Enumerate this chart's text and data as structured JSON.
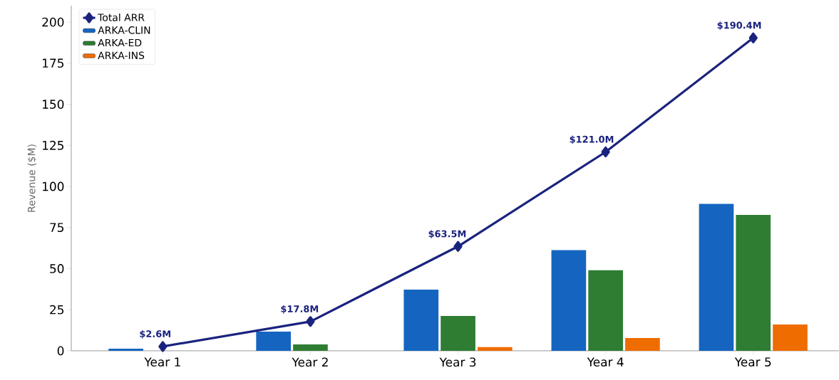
{
  "chart_data": {
    "type": "bar",
    "ylabel": "Revenue ($M)",
    "categories": [
      "Year 1",
      "Year 2",
      "Year 3",
      "Year 4",
      "Year 5"
    ],
    "series": [
      {
        "name": "Total ARR",
        "type": "line",
        "color": "#1a237e",
        "marker": "diamond",
        "values": [
          2.6,
          17.8,
          63.5,
          121.0,
          190.4
        ],
        "value_labels": [
          "$2.6M",
          "$17.8M",
          "$63.5M",
          "$121.0M",
          "$190.4M"
        ]
      },
      {
        "name": "ARKA-CLIN",
        "color": "#1565c0",
        "values": [
          1.3,
          11.7,
          37.2,
          61.2,
          89.4
        ]
      },
      {
        "name": "ARKA-ED",
        "color": "#2e7d32",
        "values": [
          0,
          3.9,
          21.2,
          49.0,
          82.7
        ]
      },
      {
        "name": "ARKA-INS",
        "color": "#ef6c00",
        "values": [
          0,
          0,
          2.2,
          7.8,
          16.0
        ]
      }
    ],
    "ylim": [
      0,
      210
    ],
    "yticks": [
      0,
      25,
      50,
      75,
      100,
      125,
      150,
      175,
      200
    ],
    "grid": false,
    "legend": "top left"
  }
}
